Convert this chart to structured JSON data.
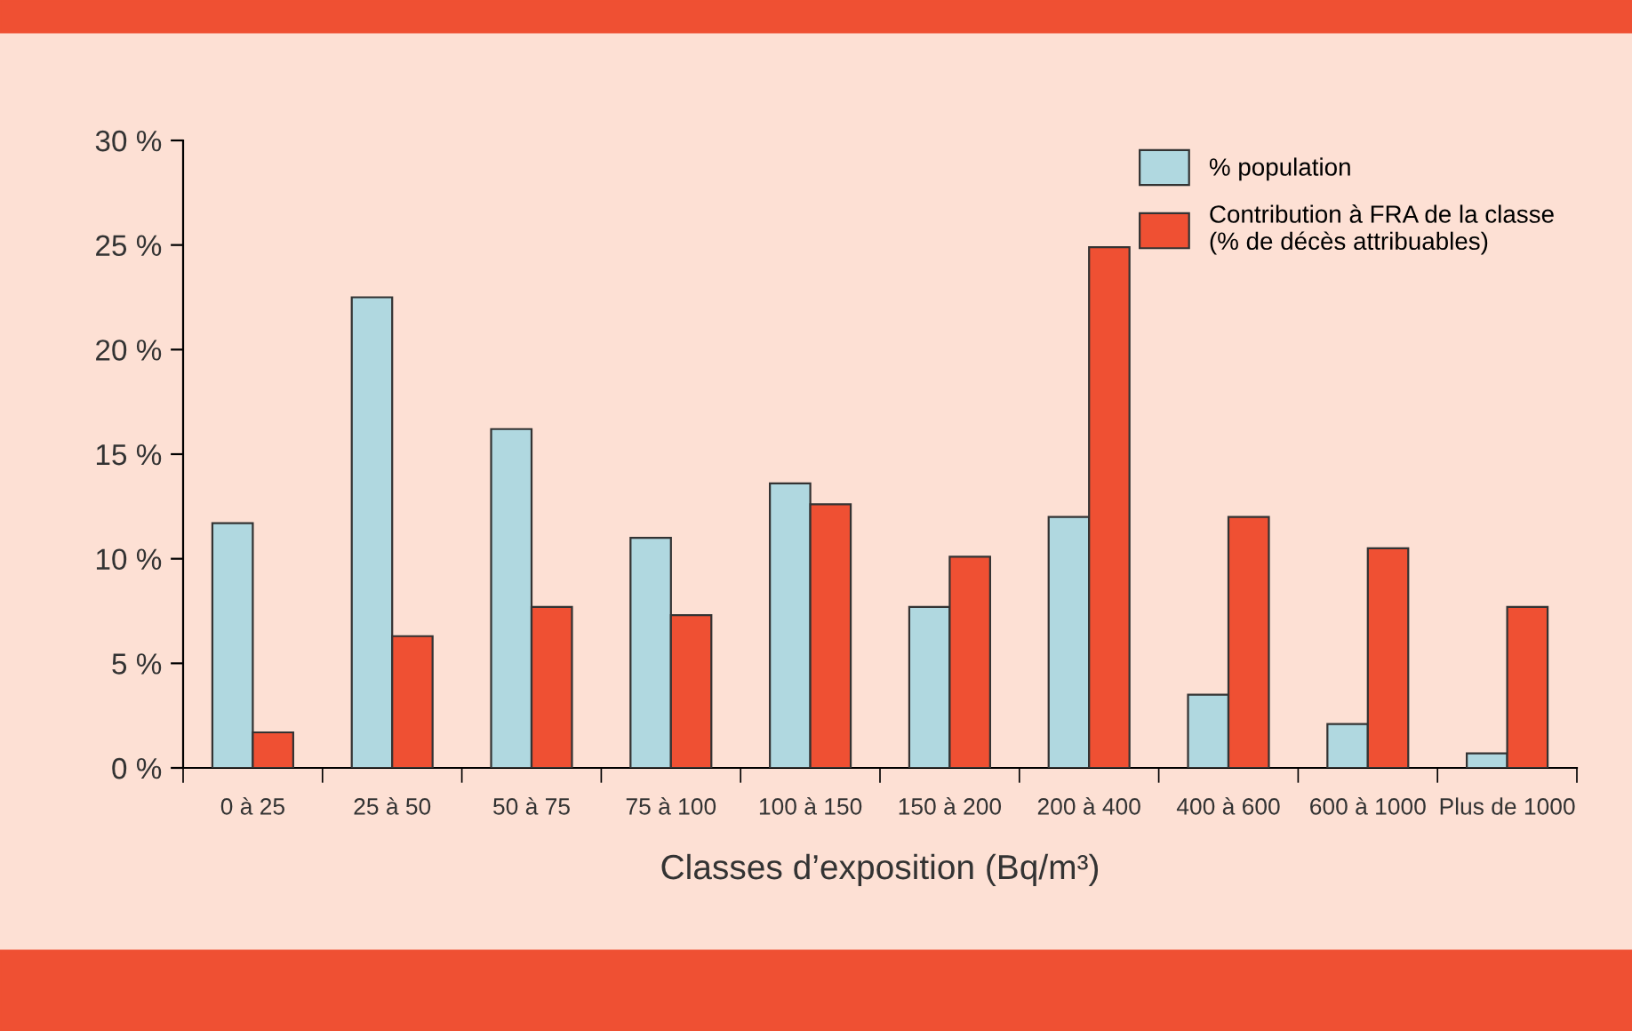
{
  "chart_data": {
    "type": "bar",
    "xlabel": "Classes d’exposition (Bq/m³)",
    "categories": [
      "0 à 25",
      "25 à 50",
      "50 à 75",
      "75 à 100",
      "100 à 150",
      "150 à 200",
      "200 à 400",
      "400 à 600",
      "600 à 1000",
      "Plus de 1000"
    ],
    "series": [
      {
        "name": "% population",
        "color": "#b0d8e0",
        "values": [
          11.7,
          22.5,
          16.2,
          11.0,
          13.6,
          7.7,
          12.0,
          3.5,
          2.1,
          0.7
        ]
      },
      {
        "name": "Contribution à FRA de la classe\n(% de décès attribuables)",
        "color": "#ef5033",
        "values": [
          1.7,
          6.3,
          7.7,
          7.3,
          12.6,
          10.1,
          24.9,
          12.0,
          10.5,
          7.7
        ]
      }
    ],
    "ylim": [
      0,
      30
    ],
    "yticks": [
      {
        "value": 0,
        "label": "0 %"
      },
      {
        "value": 5,
        "label": "5 %"
      },
      {
        "value": 10,
        "label": "10 %"
      },
      {
        "value": 15,
        "label": "15 %"
      },
      {
        "value": 20,
        "label": "20 %"
      },
      {
        "value": 25,
        "label": "25 %"
      },
      {
        "value": 30,
        "label": "30 %"
      }
    ],
    "grid": false,
    "legend": "top right"
  }
}
